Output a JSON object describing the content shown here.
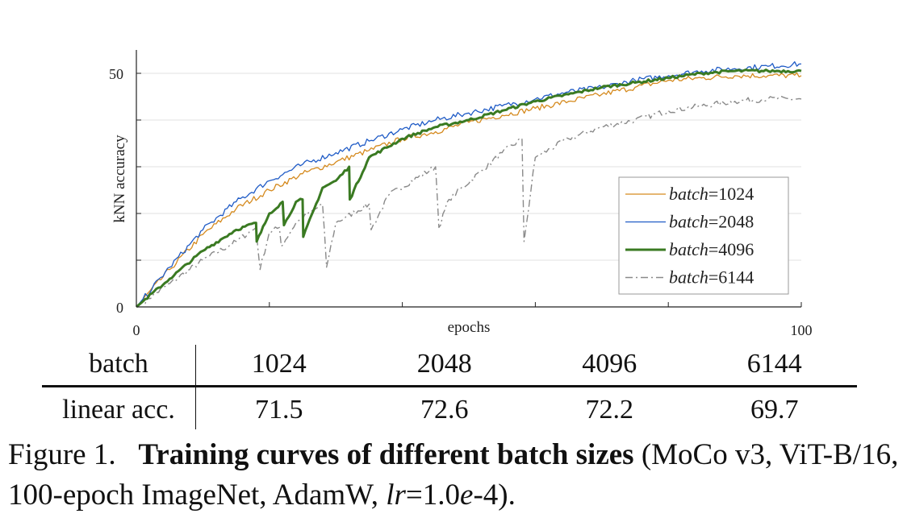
{
  "chart_data": {
    "type": "line",
    "xlabel": "epochs",
    "ylabel": "kNN accuracy",
    "xlim": [
      0,
      100
    ],
    "ylim": [
      0,
      50
    ],
    "x_tick_labels": [
      "0",
      "100"
    ],
    "y_tick_labels": [
      "0",
      "50"
    ],
    "grid": "horizontal",
    "legend_position": "lower-right",
    "series": [
      {
        "name": "batch=1024",
        "color": "#d58a1e",
        "style": "solid-thin",
        "x": [
          0,
          5,
          10,
          15,
          20,
          25,
          30,
          35,
          40,
          45,
          50,
          55,
          60,
          65,
          70,
          75,
          80,
          85,
          90,
          95,
          100
        ],
        "y": [
          0,
          8,
          15.5,
          21,
          25,
          28.5,
          31,
          33.5,
          36,
          37.5,
          39.5,
          41,
          42.5,
          44,
          45.5,
          47,
          48.5,
          49,
          49.5,
          49.5,
          49.5
        ]
      },
      {
        "name": "batch=2048",
        "color": "#1f5bc6",
        "style": "solid-thin",
        "x": [
          0,
          5,
          10,
          15,
          20,
          25,
          30,
          35,
          40,
          45,
          50,
          55,
          60,
          65,
          70,
          75,
          80,
          85,
          90,
          95,
          100
        ],
        "y": [
          0,
          8.5,
          16.5,
          22.5,
          27,
          30.5,
          33,
          35.5,
          38,
          40,
          41.5,
          43,
          44.5,
          46,
          47,
          48.5,
          49.5,
          50.5,
          51,
          51.5,
          52
        ]
      },
      {
        "name": "batch=4096",
        "color": "#3a7a22",
        "style": "solid-thick",
        "x": [
          0,
          5,
          10,
          15,
          18,
          18.1,
          20,
          22,
          22.2,
          24,
          25,
          25.1,
          28,
          30,
          32,
          32.1,
          35,
          40,
          45,
          50,
          55,
          60,
          65,
          70,
          75,
          80,
          85,
          90,
          95,
          100
        ],
        "y": [
          0,
          6,
          12,
          16.5,
          18,
          14,
          20,
          22.5,
          17.5,
          22.5,
          23,
          15,
          25.5,
          27,
          30,
          23,
          32,
          36,
          38.5,
          40,
          42,
          44,
          45.5,
          47,
          48,
          49,
          50,
          50.5,
          50.5,
          50.5
        ]
      },
      {
        "name": "batch=6144",
        "color": "#8a8a8a",
        "style": "dash-dot",
        "x": [
          0,
          5,
          10,
          15,
          18,
          18.6,
          20,
          21.5,
          21.8,
          24,
          28,
          28.6,
          30,
          35,
          35.3,
          38,
          45,
          45.5,
          47,
          55,
          58,
          58.3,
          60,
          65,
          70,
          75,
          80,
          85,
          90,
          95,
          100
        ],
        "y": [
          0,
          5,
          10,
          14,
          17,
          8,
          16,
          17,
          13,
          18,
          22,
          8.5,
          18,
          22,
          16.5,
          24,
          30,
          17,
          23,
          33,
          36,
          14,
          32,
          36,
          38.5,
          40,
          42,
          43,
          44,
          44.5,
          44.5
        ]
      }
    ]
  },
  "table": {
    "row1": {
      "header": "batch",
      "values": [
        "1024",
        "2048",
        "4096",
        "6144"
      ]
    },
    "row2": {
      "header": "linear acc.",
      "values": [
        "71.5",
        "72.6",
        "72.2",
        "69.7"
      ]
    }
  },
  "caption": {
    "label": "Figure 1.",
    "bold": "Training curves of different batch sizes",
    "rest_1": " (MoCo v3, ViT-B/16, 100-epoch ImageNet, AdamW, ",
    "lr_var": "lr",
    "lr_eq": "=1.0",
    "lr_e": "e",
    "lr_tail": "-4)."
  }
}
